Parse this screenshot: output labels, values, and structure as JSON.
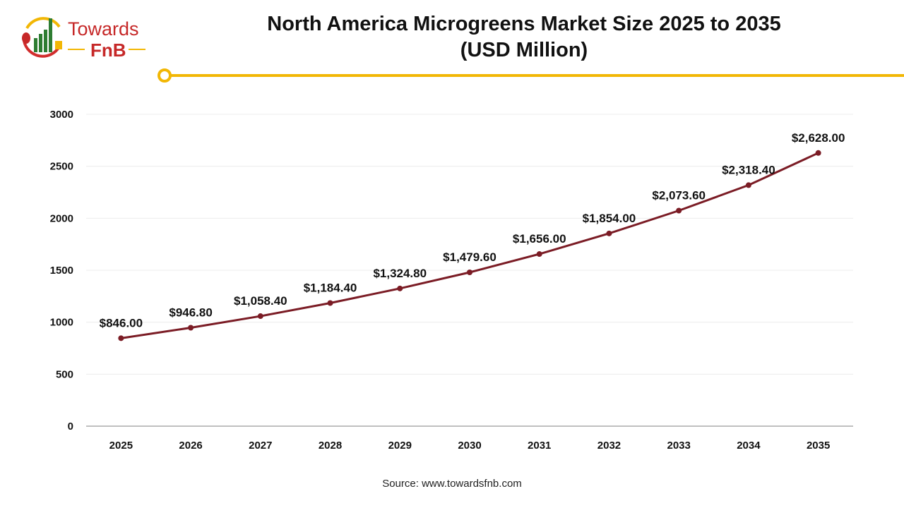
{
  "logo": {
    "line1": "Towards",
    "line2": "FnB"
  },
  "chart_data": {
    "type": "line",
    "title": "North America Microgreens Market Size 2025 to 2035",
    "subtitle": "(USD Million)",
    "categories": [
      "2025",
      "2026",
      "2027",
      "2028",
      "2029",
      "2030",
      "2031",
      "2032",
      "2033",
      "2034",
      "2035"
    ],
    "values": [
      846.0,
      946.8,
      1058.4,
      1184.4,
      1324.8,
      1479.6,
      1656.0,
      1854.0,
      2073.6,
      2318.4,
      2628.0
    ],
    "data_labels": [
      "$846.00",
      "$946.80",
      "$1,058.40",
      "$1,184.40",
      "$1,324.80",
      "$1,479.60",
      "$1,656.00",
      "$1,854.00",
      "$2,073.60",
      "$2,318.40",
      "$2,628.00"
    ],
    "ylim": [
      0,
      3000
    ],
    "yticks": [
      "0",
      "500",
      "1000",
      "1500",
      "2000",
      "2500",
      "3000"
    ],
    "grid": true,
    "line_color": "#7b1c25",
    "accent_color": "#f2b705"
  },
  "source": "Source: www.towardsfnb.com"
}
